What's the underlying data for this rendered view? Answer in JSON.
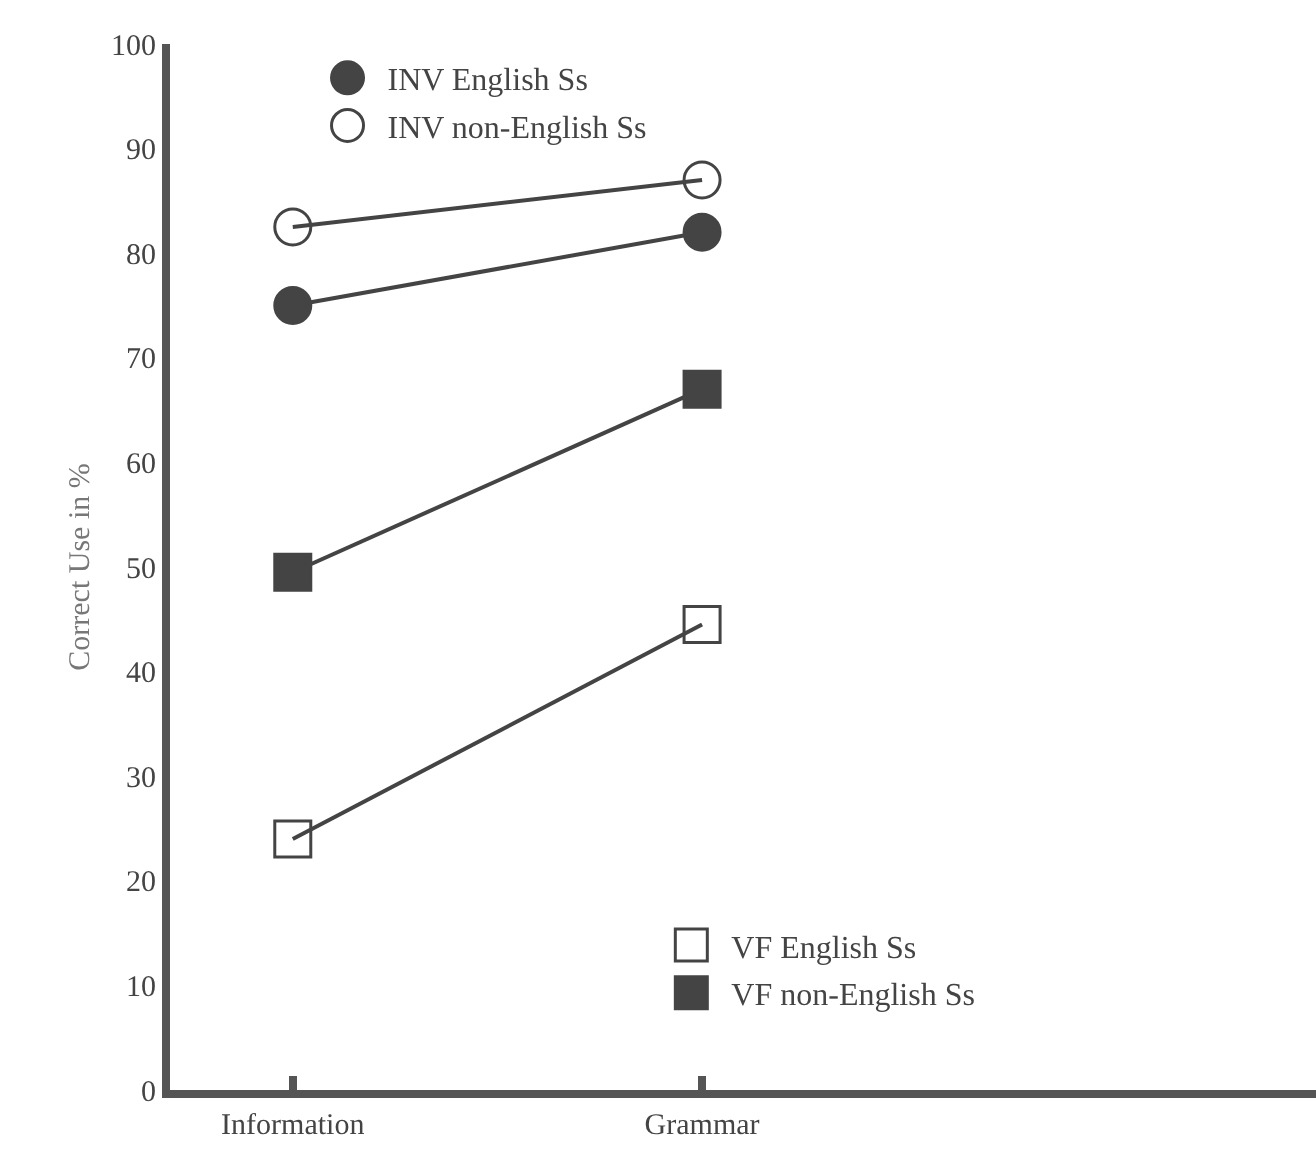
{
  "chart_data": {
    "type": "line",
    "ylabel": "Correct Use in %",
    "categories": [
      "Information",
      "Grammar"
    ],
    "series": [
      {
        "name": "INV English Ss",
        "color": "#444444",
        "marker": "circle",
        "values": [
          75,
          82
        ]
      },
      {
        "name": "INV non-English Ss",
        "color": "#444444",
        "marker": "circle-open",
        "values": [
          82.5,
          87
        ]
      },
      {
        "name": "VF English Ss",
        "color": "#444444",
        "marker": "square-open",
        "values": [
          24,
          44.5
        ]
      },
      {
        "name": "VF non-English Ss",
        "color": "#444444",
        "marker": "square",
        "values": [
          49.5,
          67
        ]
      }
    ],
    "ylim": [
      0,
      100
    ],
    "yticks": [
      0,
      10,
      20,
      30,
      40,
      50,
      60,
      70,
      80,
      90,
      100
    ],
    "legend": "top"
  }
}
